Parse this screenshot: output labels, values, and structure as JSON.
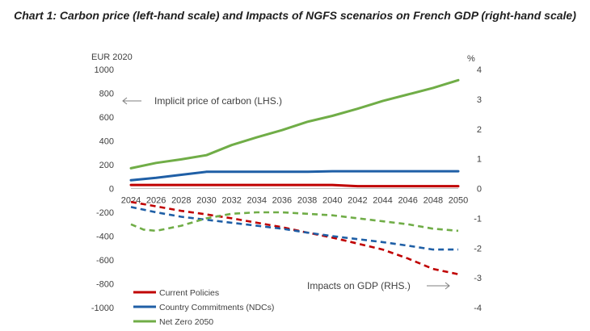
{
  "chart_data": {
    "type": "line",
    "title": "Chart 1: Carbon price (left-hand scale) and Impacts of NGFS scenarios on French GDP (right-hand scale)",
    "left_axis": {
      "unit_label": "EUR 2020",
      "ylim": [
        -1000,
        1000
      ],
      "ticks": [
        "1000",
        "800",
        "600",
        "400",
        "200",
        "0",
        "-200",
        "-400",
        "-600",
        "-800",
        "-1000"
      ]
    },
    "right_axis": {
      "unit_label": "%",
      "ylim": [
        -4,
        4
      ],
      "ticks": [
        "4",
        "3",
        "2",
        "1",
        "0",
        "-1",
        "-2",
        "-3",
        "-4"
      ]
    },
    "x_ticks": [
      "2024",
      "2026",
      "2028",
      "2030",
      "2032",
      "2034",
      "2036",
      "2038",
      "2040",
      "2042",
      "2044",
      "2046",
      "2048",
      "2050"
    ],
    "x_range": [
      2024,
      2050
    ],
    "annotations": {
      "price": "Implicit price of carbon (LHS.)",
      "gdp": "Impacts on GDP (RHS.)"
    },
    "series": [
      {
        "name": "Current Policies",
        "color": "#c00000",
        "carbon_price_lhs": {
          "x": [
            2024,
            2030,
            2040,
            2042,
            2050
          ],
          "values": [
            30,
            30,
            30,
            20,
            20
          ]
        },
        "gdp_impact_rhs": {
          "x": [
            2024,
            2026,
            2028,
            2030,
            2032,
            2034,
            2036,
            2038,
            2040,
            2042,
            2044,
            2046,
            2048,
            2050
          ],
          "values": [
            -0.45,
            -0.6,
            -0.75,
            -0.87,
            -1.0,
            -1.15,
            -1.3,
            -1.48,
            -1.65,
            -1.85,
            -2.05,
            -2.35,
            -2.7,
            -2.88
          ]
        }
      },
      {
        "name": "Country Commitments (NDCs)",
        "color": "#1f5fa6",
        "carbon_price_lhs": {
          "x": [
            2024,
            2026,
            2028,
            2030,
            2034,
            2038,
            2040,
            2044,
            2050
          ],
          "values": [
            70,
            90,
            115,
            140,
            140,
            140,
            145,
            145,
            145
          ]
        },
        "gdp_impact_rhs": {
          "x": [
            2024,
            2026,
            2028,
            2030,
            2032,
            2034,
            2036,
            2038,
            2040,
            2042,
            2044,
            2046,
            2048,
            2050
          ],
          "values": [
            -0.62,
            -0.8,
            -0.95,
            -1.05,
            -1.15,
            -1.25,
            -1.35,
            -1.48,
            -1.6,
            -1.7,
            -1.8,
            -1.92,
            -2.05,
            -2.05
          ]
        }
      },
      {
        "name": "Net Zero 2050",
        "color": "#70ad47",
        "carbon_price_lhs": {
          "x": [
            2024,
            2026,
            2028,
            2030,
            2032,
            2034,
            2036,
            2038,
            2040,
            2042,
            2044,
            2046,
            2048,
            2050
          ],
          "values": [
            170,
            215,
            245,
            280,
            365,
            430,
            490,
            560,
            610,
            670,
            735,
            790,
            845,
            910
          ]
        },
        "gdp_impact_rhs": {
          "x": [
            2024,
            2025,
            2026,
            2028,
            2030,
            2032,
            2034,
            2036,
            2038,
            2040,
            2042,
            2044,
            2046,
            2048,
            2050
          ],
          "values": [
            -1.2,
            -1.38,
            -1.42,
            -1.25,
            -1.0,
            -0.85,
            -0.8,
            -0.8,
            -0.85,
            -0.9,
            -1.0,
            -1.1,
            -1.2,
            -1.35,
            -1.42
          ]
        }
      }
    ],
    "legend": [
      "Current Policies",
      "Country Commitments (NDCs)",
      "Net Zero 2050"
    ]
  }
}
